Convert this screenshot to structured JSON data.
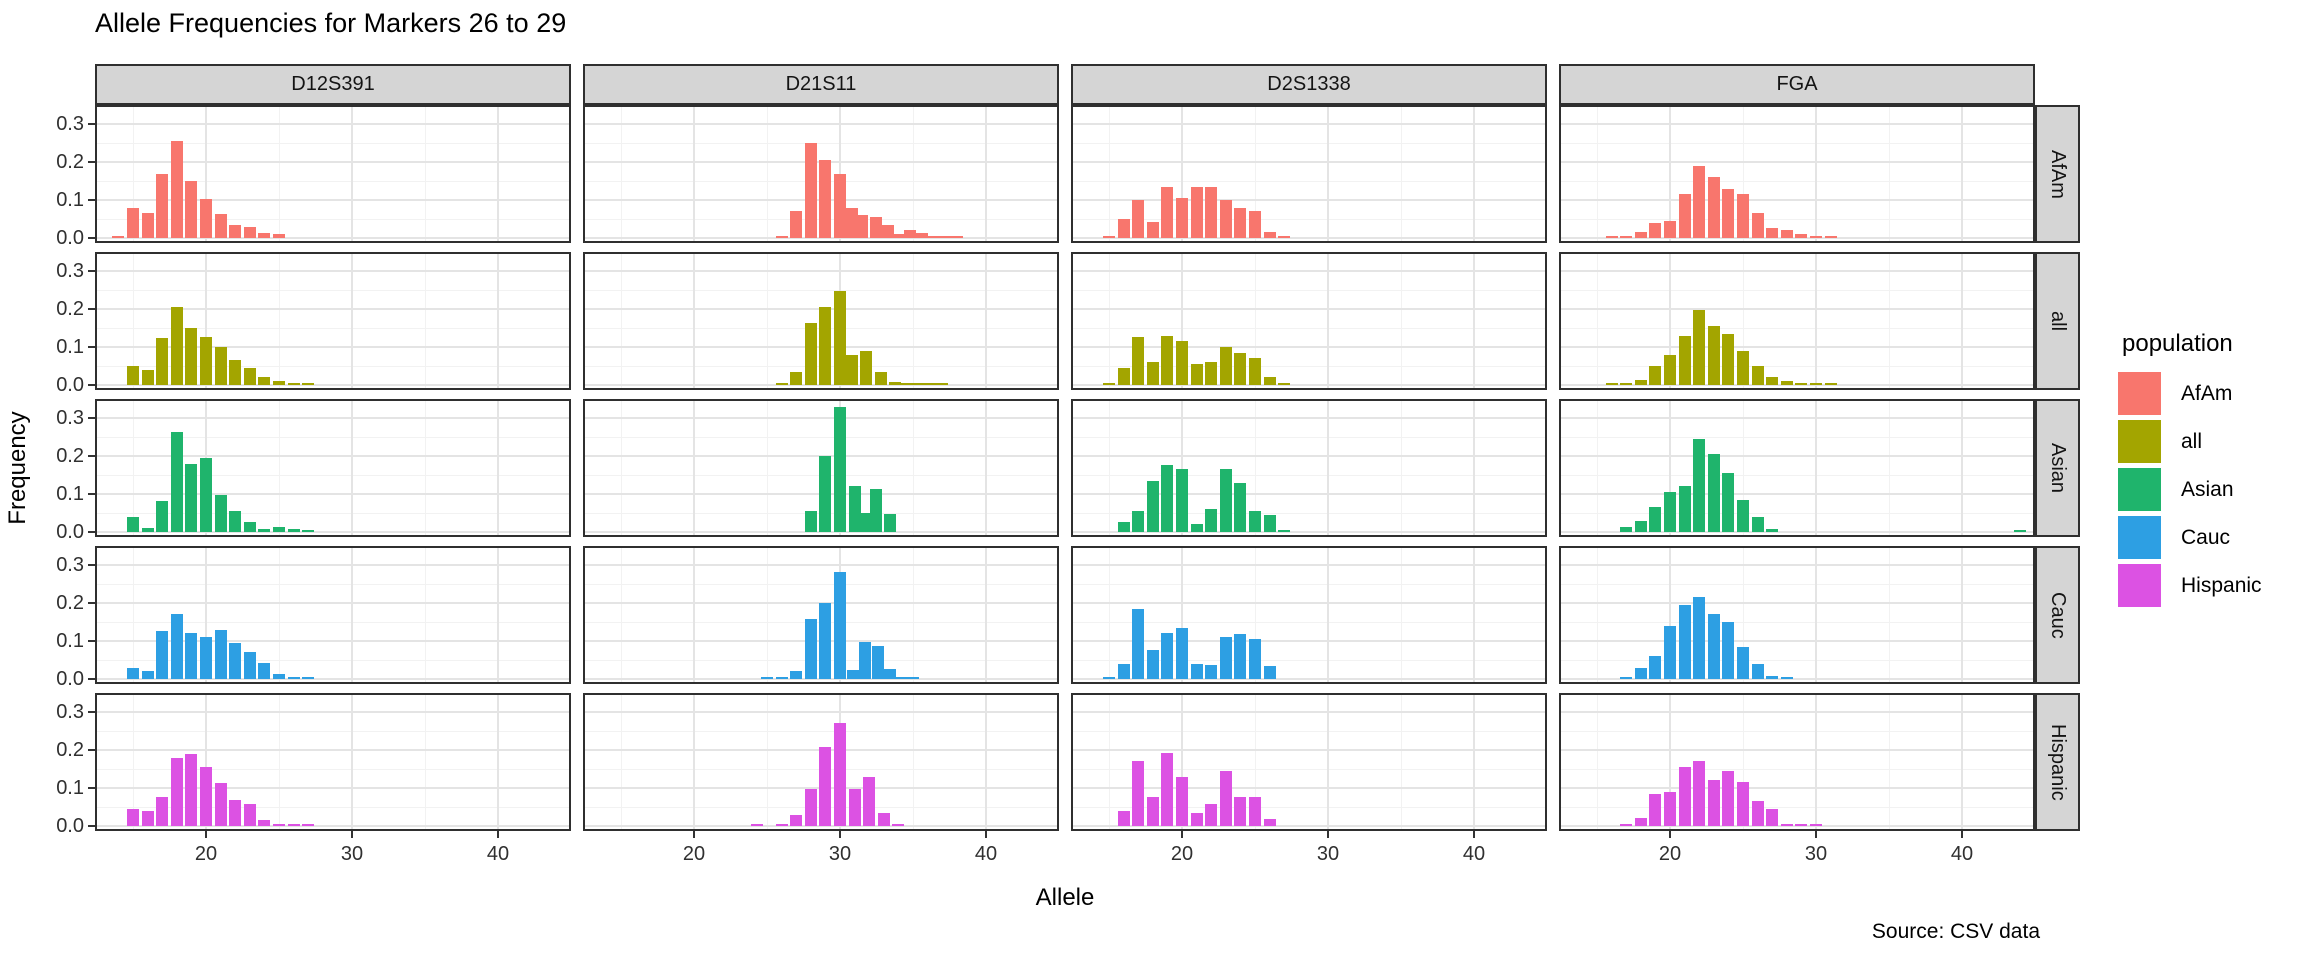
{
  "legend": {
    "title": "population",
    "entries": [
      {
        "label": "AfAm",
        "color": "#F8766D"
      },
      {
        "label": "all",
        "color": "#A3A500"
      },
      {
        "label": "Asian",
        "color": "#1FB46C"
      },
      {
        "label": "Cauc",
        "color": "#2D9FE3"
      },
      {
        "label": "Hispanic",
        "color": "#DC52E3"
      }
    ]
  },
  "chart_data": {
    "type": "bar",
    "title": "Allele Frequencies for Markers 26 to 29",
    "xlabel": "Allele",
    "ylabel": "Frequency",
    "caption": "Source: CSV data",
    "facet_columns": [
      "D12S391",
      "D21S11",
      "D2S1338",
      "FGA"
    ],
    "facet_rows": [
      "AfAm",
      "all",
      "Asian",
      "Cauc",
      "Hispanic"
    ],
    "x_ticks": [
      20,
      30,
      40
    ],
    "x_tick_labels": [
      "20",
      "30",
      "40"
    ],
    "x_minor": [
      15,
      25,
      35,
      45
    ],
    "y_ticks": [
      0.3,
      0.2,
      0.1,
      0.0
    ],
    "y_tick_labels": [
      "0.3",
      "0.2",
      "0.1",
      "0.0"
    ],
    "y_minor": [
      0.05,
      0.15,
      0.25
    ],
    "x_domain": [
      12.4,
      45.0
    ],
    "y_domain": [
      0,
      0.35
    ],
    "grid": true,
    "legend_position": "right",
    "panels": [
      {
        "marker": "D12S391",
        "population": "AfAm",
        "x": [
          14,
          15,
          16,
          17,
          18,
          19,
          20,
          21,
          22,
          23,
          24,
          25
        ],
        "y": [
          0.004,
          0.078,
          0.067,
          0.168,
          0.254,
          0.149,
          0.103,
          0.063,
          0.035,
          0.029,
          0.012,
          0.01
        ]
      },
      {
        "marker": "D21S11",
        "population": "AfAm",
        "x": [
          26,
          27,
          28,
          29,
          30,
          30.8,
          31.5,
          32.5,
          33.3,
          34,
          34.8,
          35.6,
          36.4,
          37.2,
          38
        ],
        "y": [
          0.004,
          0.072,
          0.25,
          0.205,
          0.168,
          0.078,
          0.06,
          0.055,
          0.035,
          0.01,
          0.02,
          0.012,
          0.004,
          0.003,
          0.003
        ]
      },
      {
        "marker": "D2S1338",
        "population": "AfAm",
        "x": [
          15,
          16,
          17,
          18,
          19,
          20,
          21,
          22,
          23,
          24,
          25,
          26,
          27
        ],
        "y": [
          0.005,
          0.05,
          0.1,
          0.042,
          0.135,
          0.105,
          0.133,
          0.133,
          0.1,
          0.078,
          0.07,
          0.017,
          0.006
        ]
      },
      {
        "marker": "FGA",
        "population": "AfAm",
        "x": [
          16,
          17,
          18,
          19,
          20,
          21,
          22,
          23,
          24,
          25,
          26,
          27,
          28,
          29,
          30,
          31
        ],
        "y": [
          0.004,
          0.006,
          0.015,
          0.04,
          0.046,
          0.115,
          0.19,
          0.16,
          0.13,
          0.115,
          0.065,
          0.025,
          0.02,
          0.01,
          0.005,
          0.004
        ]
      },
      {
        "marker": "D12S391",
        "population": "all",
        "x": [
          15,
          16,
          17,
          18,
          19,
          20,
          21,
          22,
          23,
          24,
          25,
          26,
          27
        ],
        "y": [
          0.05,
          0.04,
          0.123,
          0.206,
          0.15,
          0.126,
          0.1,
          0.065,
          0.046,
          0.022,
          0.01,
          0.004,
          0.003
        ]
      },
      {
        "marker": "D21S11",
        "population": "all",
        "x": [
          26,
          27,
          28,
          29,
          30,
          30.8,
          31.8,
          32.8,
          33.8,
          34.6,
          35.4,
          36.2,
          37
        ],
        "y": [
          0.003,
          0.035,
          0.163,
          0.205,
          0.247,
          0.078,
          0.09,
          0.035,
          0.008,
          0.004,
          0.002,
          0.002,
          0.002
        ]
      },
      {
        "marker": "D2S1338",
        "population": "all",
        "x": [
          15,
          16,
          17,
          18,
          19,
          20,
          21,
          22,
          23,
          24,
          25,
          26,
          27
        ],
        "y": [
          0.003,
          0.045,
          0.125,
          0.06,
          0.13,
          0.115,
          0.056,
          0.06,
          0.1,
          0.085,
          0.07,
          0.02,
          0.004
        ]
      },
      {
        "marker": "FGA",
        "population": "all",
        "x": [
          16,
          17,
          18,
          19,
          20,
          21,
          22,
          23,
          24,
          25,
          26,
          27,
          28,
          29,
          30,
          31
        ],
        "y": [
          0.003,
          0.005,
          0.012,
          0.05,
          0.08,
          0.13,
          0.198,
          0.155,
          0.135,
          0.09,
          0.05,
          0.02,
          0.01,
          0.005,
          0.003,
          0.002
        ]
      },
      {
        "marker": "D12S391",
        "population": "Asian",
        "x": [
          15,
          16,
          17,
          18,
          19,
          20,
          21,
          22,
          23,
          24,
          25,
          26,
          27
        ],
        "y": [
          0.04,
          0.01,
          0.082,
          0.262,
          0.178,
          0.196,
          0.098,
          0.055,
          0.025,
          0.008,
          0.013,
          0.008,
          0.004
        ]
      },
      {
        "marker": "D21S11",
        "population": "Asian",
        "x": [
          28,
          29,
          30,
          31,
          31.7,
          32.5,
          33.4
        ],
        "y": [
          0.055,
          0.2,
          0.33,
          0.122,
          0.05,
          0.113,
          0.047
        ]
      },
      {
        "marker": "D2S1338",
        "population": "Asian",
        "x": [
          16,
          17,
          18,
          19,
          20,
          21,
          22,
          23,
          24,
          25,
          26,
          27
        ],
        "y": [
          0.025,
          0.055,
          0.135,
          0.175,
          0.165,
          0.02,
          0.06,
          0.165,
          0.13,
          0.055,
          0.045,
          0.006
        ]
      },
      {
        "marker": "FGA",
        "population": "Asian",
        "x": [
          17,
          18,
          19,
          20,
          21,
          22,
          23,
          24,
          25,
          26,
          27,
          44
        ],
        "y": [
          0.012,
          0.03,
          0.065,
          0.105,
          0.12,
          0.245,
          0.205,
          0.155,
          0.085,
          0.04,
          0.007,
          0.005
        ]
      },
      {
        "marker": "D12S391",
        "population": "Cauc",
        "x": [
          15,
          16,
          17,
          18,
          19,
          20,
          21,
          22,
          23,
          24,
          25,
          26,
          27
        ],
        "y": [
          0.03,
          0.02,
          0.125,
          0.17,
          0.122,
          0.111,
          0.128,
          0.094,
          0.07,
          0.042,
          0.013,
          0.003,
          0.002
        ]
      },
      {
        "marker": "D21S11",
        "population": "Cauc",
        "x": [
          25,
          26,
          27,
          28,
          29,
          30,
          30.9,
          31.7,
          32.6,
          33.4,
          34.2,
          35
        ],
        "y": [
          0.002,
          0.003,
          0.021,
          0.158,
          0.2,
          0.282,
          0.024,
          0.097,
          0.088,
          0.026,
          0.004,
          0.003
        ]
      },
      {
        "marker": "D2S1338",
        "population": "Cauc",
        "x": [
          15,
          16,
          17,
          18,
          19,
          20,
          21,
          22,
          23,
          24,
          25,
          26
        ],
        "y": [
          0.003,
          0.04,
          0.185,
          0.075,
          0.12,
          0.135,
          0.04,
          0.038,
          0.11,
          0.118,
          0.105,
          0.035
        ]
      },
      {
        "marker": "FGA",
        "population": "Cauc",
        "x": [
          17,
          18,
          19,
          20,
          21,
          22,
          23,
          24,
          25,
          26,
          27,
          28
        ],
        "y": [
          0.005,
          0.03,
          0.06,
          0.14,
          0.195,
          0.215,
          0.17,
          0.15,
          0.085,
          0.04,
          0.007,
          0.003
        ]
      },
      {
        "marker": "D12S391",
        "population": "Hispanic",
        "x": [
          15,
          16,
          17,
          18,
          19,
          20,
          21,
          22,
          23,
          24,
          25,
          26,
          27
        ],
        "y": [
          0.044,
          0.04,
          0.076,
          0.18,
          0.19,
          0.154,
          0.112,
          0.068,
          0.058,
          0.017,
          0.006,
          0.006,
          0.006
        ]
      },
      {
        "marker": "D21S11",
        "population": "Hispanic",
        "x": [
          24.3,
          26,
          27,
          28,
          29,
          30,
          31,
          32,
          33,
          34
        ],
        "y": [
          0.002,
          0.004,
          0.028,
          0.098,
          0.208,
          0.272,
          0.098,
          0.128,
          0.035,
          0.004
        ]
      },
      {
        "marker": "D2S1338",
        "population": "Hispanic",
        "x": [
          16,
          17,
          18,
          19,
          20,
          21,
          22,
          23,
          24,
          25,
          26
        ],
        "y": [
          0.04,
          0.17,
          0.075,
          0.193,
          0.13,
          0.035,
          0.058,
          0.145,
          0.075,
          0.075,
          0.018
        ]
      },
      {
        "marker": "FGA",
        "population": "Hispanic",
        "x": [
          17,
          18,
          19,
          20,
          21,
          22,
          23,
          24,
          25,
          26,
          27,
          28,
          29,
          30
        ],
        "y": [
          0.005,
          0.02,
          0.085,
          0.09,
          0.155,
          0.17,
          0.12,
          0.145,
          0.115,
          0.065,
          0.045,
          0.006,
          0.004,
          0.004
        ]
      }
    ]
  }
}
